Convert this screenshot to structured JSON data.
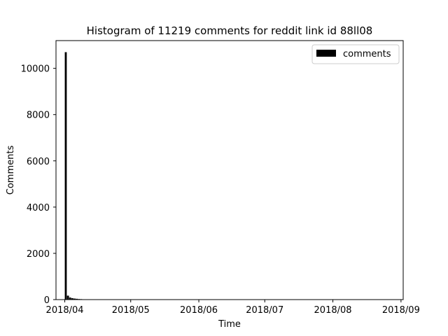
{
  "chart_data": {
    "type": "bar",
    "title": "Histogram of 11219 comments for reddit link id 88ll08",
    "xlabel": "Time",
    "ylabel": "Comments",
    "x_ticks": [
      "2018/04",
      "2018/05",
      "2018/06",
      "2018/07",
      "2018/08",
      "2018/09"
    ],
    "x_tick_dates": [
      "2018-04-01",
      "2018-05-01",
      "2018-06-01",
      "2018-07-01",
      "2018-08-01",
      "2018-09-01"
    ],
    "xlim": [
      "2018-03-28",
      "2018-09-02"
    ],
    "y_ticks": [
      0,
      2000,
      4000,
      6000,
      8000,
      10000
    ],
    "ylim": [
      0,
      11200
    ],
    "series": [
      {
        "name": "comments",
        "color": "#000000",
        "x": [
          "2018-04-01",
          "2018-04-02",
          "2018-04-03",
          "2018-04-04",
          "2018-04-05",
          "2018-04-06",
          "2018-04-07",
          "2018-04-08"
        ],
        "values": [
          10700,
          170,
          90,
          60,
          45,
          35,
          25,
          20
        ]
      }
    ],
    "legend": {
      "placement": "top-right",
      "entries": [
        "comments"
      ]
    },
    "grid": false
  }
}
